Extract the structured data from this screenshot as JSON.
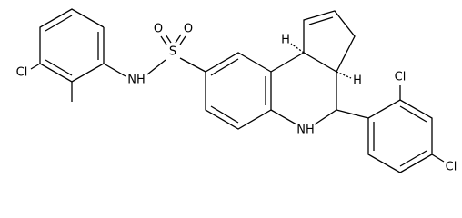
{
  "labels": [
    "Cl",
    "NH",
    "S",
    "O",
    "O",
    "H",
    "H",
    "NH",
    "Cl",
    "Cl"
  ]
}
